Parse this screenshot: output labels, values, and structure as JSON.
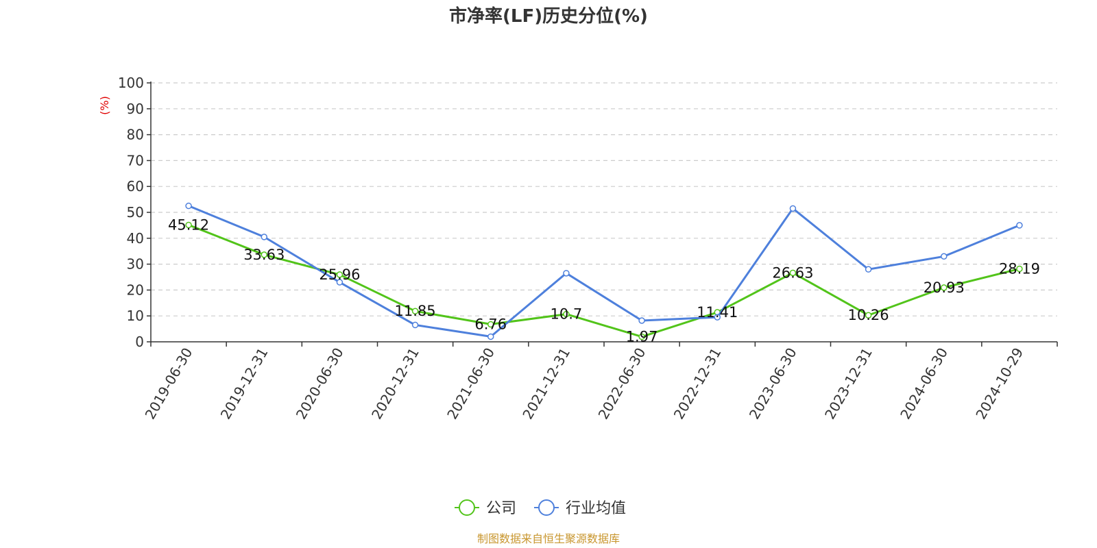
{
  "chart_data": {
    "type": "line",
    "title": "市净率(LF)历史分位(%)",
    "ylabel": "(%)",
    "ylim": [
      0,
      100
    ],
    "yticks": [
      0,
      10,
      20,
      30,
      40,
      50,
      60,
      70,
      80,
      90,
      100
    ],
    "grid": true,
    "legend_position": "bottom",
    "categories": [
      "2019-06-30",
      "2019-12-31",
      "2020-06-30",
      "2020-12-31",
      "2021-06-30",
      "2021-12-31",
      "2022-06-30",
      "2022-12-31",
      "2023-06-30",
      "2023-12-31",
      "2024-06-30",
      "2024-10-29"
    ],
    "series": [
      {
        "name": "公司",
        "color": "#52c41a",
        "values": [
          45.12,
          33.63,
          25.96,
          11.85,
          6.76,
          10.7,
          1.97,
          11.41,
          26.63,
          10.26,
          20.93,
          28.19
        ],
        "labels": [
          "45.12",
          "33.63",
          "25.96",
          "11.85",
          "6.76",
          "10.7",
          "1.97",
          "11.41",
          "26.63",
          "10.26",
          "20.93",
          "28.19"
        ]
      },
      {
        "name": "行业均值",
        "color": "#4e80dc",
        "values": [
          52.5,
          40.5,
          23.0,
          6.5,
          2.0,
          26.5,
          8.2,
          9.5,
          51.5,
          28.0,
          33.0,
          45.0
        ]
      }
    ],
    "source": "制图数据来自恒生聚源数据库"
  },
  "colors": {
    "unit_label": "#e00000",
    "source_text": "#c8962e",
    "axis": "#333333",
    "grid": "#cccccc"
  }
}
